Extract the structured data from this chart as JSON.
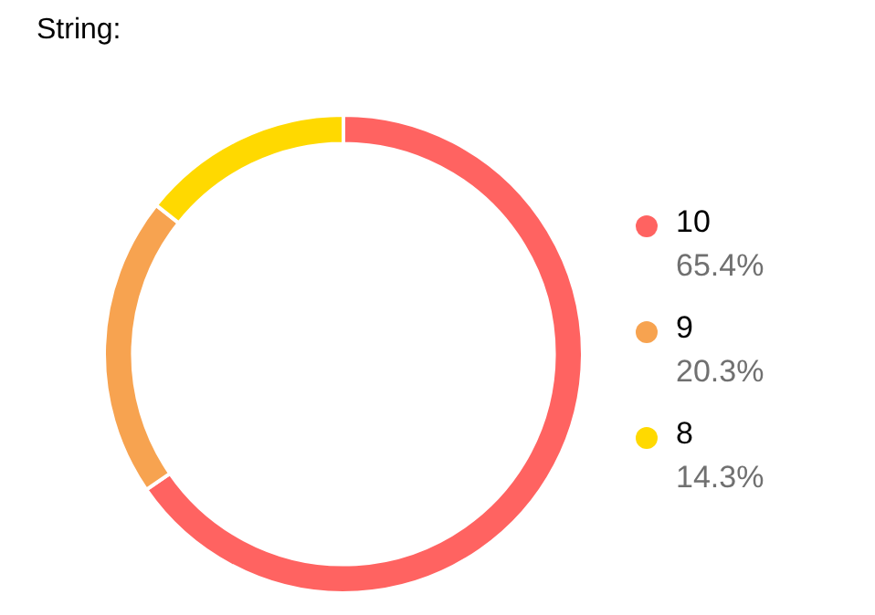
{
  "chart_data": {
    "type": "donut",
    "title": "String:",
    "categories": [
      "10",
      "9",
      "8"
    ],
    "values": [
      65.4,
      20.3,
      14.3
    ],
    "colors": [
      "#ff6361",
      "#f7a350",
      "#ffd900"
    ],
    "value_labels": [
      "65.4%",
      "20.3%",
      "14.3%"
    ],
    "legend": "right"
  }
}
